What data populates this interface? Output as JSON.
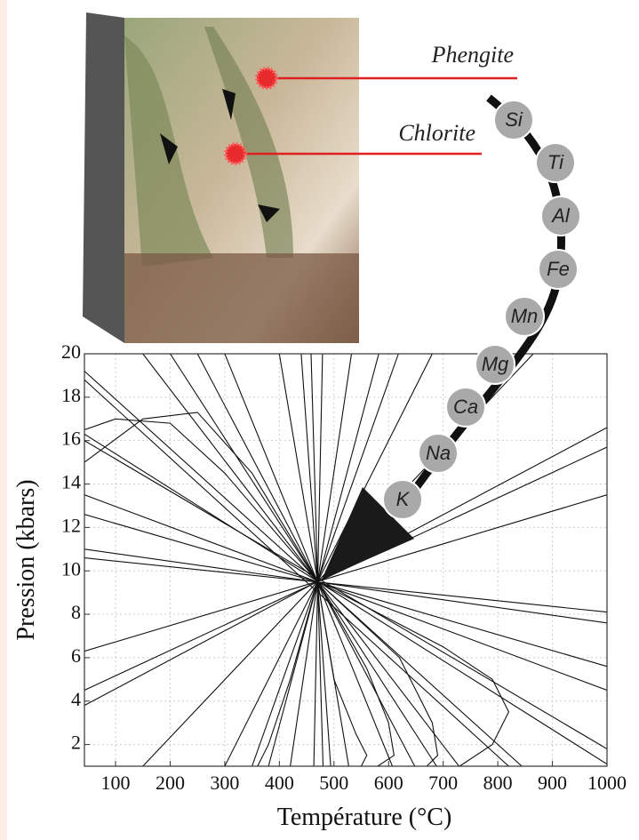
{
  "chart_data": {
    "type": "line",
    "xlabel": "Température (°C)",
    "ylabel": "Pression (kbars)",
    "xlim": [
      43,
      1000
    ],
    "ylim": [
      1,
      20
    ],
    "xticks": [
      100,
      200,
      300,
      400,
      500,
      600,
      700,
      800,
      900,
      1000
    ],
    "yticks": [
      2,
      4,
      6,
      8,
      10,
      12,
      14,
      16,
      18,
      20
    ],
    "grid": true,
    "annotations": [
      "Phengite",
      "Chlorite"
    ],
    "elements": [
      "Si",
      "Ti",
      "Al",
      "Fe",
      "Mn",
      "Mg",
      "Ca",
      "Na",
      "K"
    ],
    "series": [
      {
        "color": "#111",
        "x": [
          43,
          844
        ],
        "values": [
          19.2,
          1
        ]
      },
      {
        "color": "#111",
        "x": [
          43,
          820
        ],
        "values": [
          18.8,
          1
        ]
      },
      {
        "color": "#111",
        "x": [
          43,
          1000
        ],
        "values": [
          16.3,
          1.1
        ]
      },
      {
        "color": "#111",
        "x": [
          43,
          1000
        ],
        "values": [
          16.0,
          1.8
        ]
      },
      {
        "color": "#111",
        "x": [
          43,
          1000
        ],
        "values": [
          12.6,
          5.6
        ]
      },
      {
        "color": "#111",
        "x": [
          43,
          1000
        ],
        "values": [
          11.0,
          7.6
        ]
      },
      {
        "color": "#111",
        "x": [
          43,
          1000
        ],
        "values": [
          6.3,
          13.5
        ]
      },
      {
        "color": "#111",
        "x": [
          43,
          1000
        ],
        "values": [
          3.8,
          16.6
        ]
      },
      {
        "color": "#111",
        "x": [
          150,
          865
        ],
        "values": [
          1,
          20
        ]
      },
      {
        "color": "#111",
        "x": [
          300,
          680
        ],
        "values": [
          1,
          20
        ]
      },
      {
        "color": "#111",
        "x": [
          380,
          582
        ],
        "values": [
          1,
          20
        ]
      },
      {
        "color": "#111",
        "x": [
          420,
          532
        ],
        "values": [
          1,
          20
        ]
      },
      {
        "color": "#111",
        "x": [
          440,
          494
        ],
        "values": [
          20,
          1
        ]
      },
      {
        "color": "#111",
        "x": [
          400,
          527
        ],
        "values": [
          20,
          1
        ]
      },
      {
        "color": "#111",
        "x": [
          300,
          607
        ],
        "values": [
          20,
          1
        ]
      },
      {
        "color": "#111",
        "x": [
          200,
          688
        ],
        "values": [
          20,
          1
        ]
      },
      {
        "color": "#111",
        "x": [
          150,
          729
        ],
        "values": [
          20,
          1
        ]
      },
      {
        "color": "#111",
        "x": [
          43,
          1000
        ],
        "values": [
          10.6,
          8.1
        ]
      },
      {
        "color": "#111",
        "x": [
          43,
          1000
        ],
        "values": [
          13.5,
          4.5
        ]
      },
      {
        "color": "#111",
        "x": [
          43,
          1000
        ],
        "values": [
          4.5,
          15.7
        ]
      },
      {
        "color": "#111",
        "x": [
          250,
          648
        ],
        "values": [
          20,
          1
        ]
      },
      {
        "color": "#111",
        "x": [
          350,
          618
        ],
        "values": [
          1,
          20
        ]
      },
      {
        "color": "#111",
        "x": [
          463,
          479
        ],
        "values": [
          1,
          20
        ]
      },
      {
        "color": "#111",
        "x": [
          480,
          458
        ],
        "values": [
          1,
          20
        ]
      },
      {
        "color": "#111",
        "x": [
          43,
          150,
          250,
          350,
          470
        ],
        "values": [
          15.0,
          17.0,
          17.3,
          14.5,
          9.5
        ]
      },
      {
        "color": "#111",
        "x": [
          470,
          560,
          600,
          610,
          580
        ],
        "values": [
          9.5,
          5.5,
          3,
          1.5,
          1
        ]
      },
      {
        "color": "#111",
        "x": [
          470,
          700,
          790,
          820,
          790,
          730
        ],
        "values": [
          9.5,
          6.5,
          5,
          3.5,
          2,
          1
        ]
      },
      {
        "color": "#111",
        "x": [
          470,
          620,
          680,
          690,
          670
        ],
        "values": [
          9.5,
          6,
          3,
          1.5,
          1
        ]
      },
      {
        "color": "#111",
        "x": [
          43,
          100,
          200,
          300,
          470
        ],
        "values": [
          16.5,
          17,
          16.8,
          14.5,
          9.5
        ]
      },
      {
        "color": "#111",
        "x": [
          470,
          420,
          380,
          360
        ],
        "values": [
          9.5,
          5,
          2,
          1
        ]
      },
      {
        "color": "#111",
        "x": [
          470,
          500,
          540,
          560,
          550
        ],
        "values": [
          9.5,
          5,
          2.5,
          1.5,
          1
        ]
      }
    ]
  }
}
